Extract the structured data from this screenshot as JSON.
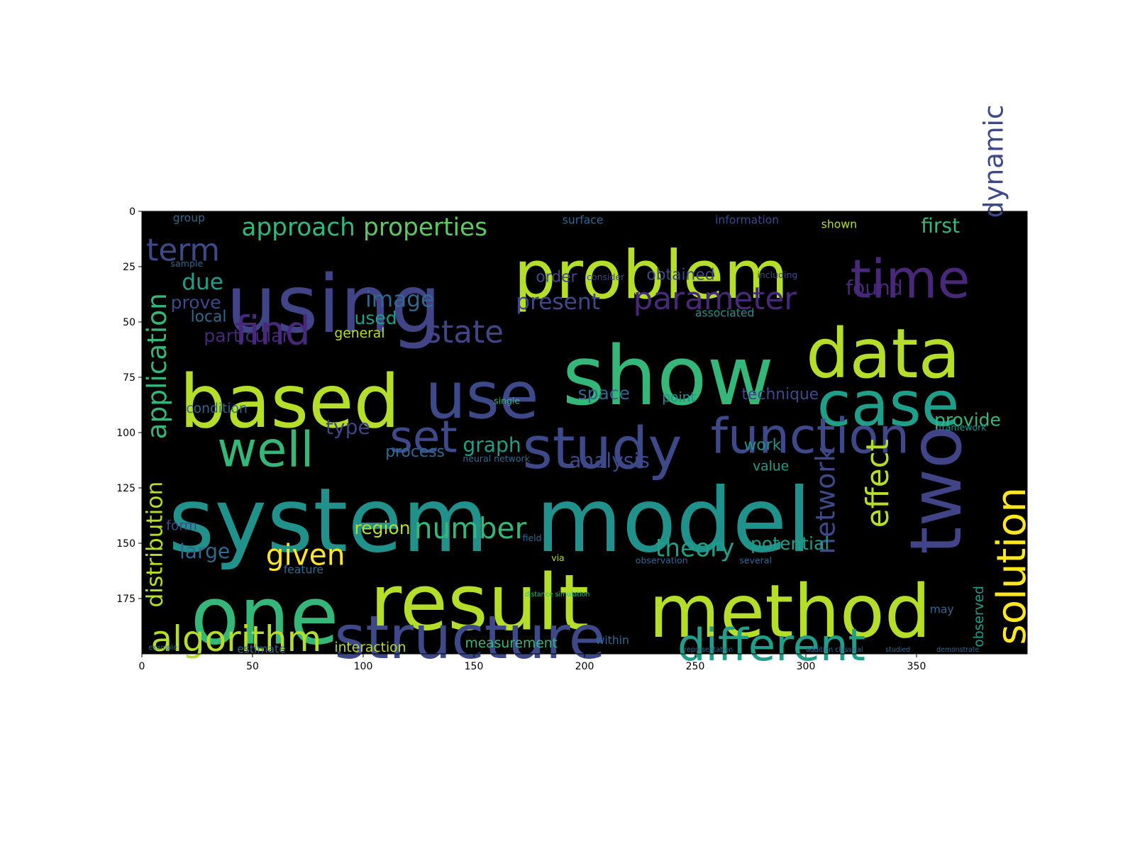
{
  "chart_data": {
    "type": "wordcloud",
    "title": "",
    "xlabel": "",
    "ylabel": "",
    "xlim": [
      0,
      400
    ],
    "ylim": [
      200,
      0
    ],
    "x_ticks": [
      0,
      50,
      100,
      150,
      200,
      250,
      300,
      350
    ],
    "y_ticks": [
      0,
      25,
      50,
      75,
      100,
      125,
      150,
      175
    ],
    "x_tick_labels": [
      "0",
      "50",
      "100",
      "150",
      "200",
      "250",
      "300",
      "350"
    ],
    "y_tick_labels": [
      "0",
      "25",
      "50",
      "75",
      "100",
      "125",
      "150",
      "175"
    ],
    "grid": false,
    "background": "#000000",
    "palette": {
      "yellow": "#fde725",
      "lime": "#b5de2b",
      "green": "#35b779",
      "teal": "#1f9e89",
      "blue": "#3e4989",
      "navy": "#31688e",
      "purple": "#482878",
      "dark": "#440154"
    },
    "words": [
      {
        "text": "system",
        "x": 12,
        "y": 124,
        "size": 40,
        "color": "#21918c"
      },
      {
        "text": "model",
        "x": 178,
        "y": 124,
        "size": 40,
        "color": "#21918c"
      },
      {
        "text": "using",
        "x": 38,
        "y": 28,
        "size": 36,
        "color": "#414487"
      },
      {
        "text": "problem",
        "x": 168,
        "y": 17,
        "size": 30,
        "color": "#b5de2b"
      },
      {
        "text": "show",
        "x": 190,
        "y": 60,
        "size": 37,
        "color": "#35b779"
      },
      {
        "text": "based",
        "x": 17,
        "y": 73,
        "size": 33,
        "color": "#b5de2b"
      },
      {
        "text": "data",
        "x": 300,
        "y": 52,
        "size": 31,
        "color": "#b5de2b"
      },
      {
        "text": "use",
        "x": 128,
        "y": 72,
        "size": 29,
        "color": "#3e4989"
      },
      {
        "text": "case",
        "x": 305,
        "y": 76,
        "size": 28,
        "color": "#1f9e89"
      },
      {
        "text": "time",
        "x": 320,
        "y": 21,
        "size": 24,
        "color": "#482878"
      },
      {
        "text": "study",
        "x": 172,
        "y": 97,
        "size": 26,
        "color": "#3e4989"
      },
      {
        "text": "function",
        "x": 257,
        "y": 93,
        "size": 22,
        "color": "#3e4989"
      },
      {
        "text": "result",
        "x": 103,
        "y": 163,
        "size": 35,
        "color": "#b5de2b"
      },
      {
        "text": "one",
        "x": 22,
        "y": 169,
        "size": 36,
        "color": "#35b779"
      },
      {
        "text": "method",
        "x": 229,
        "y": 168,
        "size": 33,
        "color": "#b5de2b"
      },
      {
        "text": "structure",
        "x": 87,
        "y": 182,
        "size": 27,
        "color": "#3e4989"
      },
      {
        "text": "different",
        "x": 242,
        "y": 188,
        "size": 20,
        "color": "#1f9e89"
      },
      {
        "text": "algorithm",
        "x": 4,
        "y": 187,
        "size": 16,
        "color": "#b5de2b"
      },
      {
        "text": "well",
        "x": 34,
        "y": 99,
        "size": 22,
        "color": "#35b779"
      },
      {
        "text": "set",
        "x": 112,
        "y": 94,
        "size": 20,
        "color": "#3e4989"
      },
      {
        "text": "find",
        "x": 42,
        "y": 47,
        "size": 18,
        "color": "#482878"
      },
      {
        "text": "term",
        "x": 2,
        "y": 12,
        "size": 14,
        "color": "#3e4989"
      },
      {
        "text": "approach",
        "x": 45,
        "y": 3,
        "size": 11,
        "color": "#35b779"
      },
      {
        "text": "properties",
        "x": 100,
        "y": 3,
        "size": 11,
        "color": "#5ec962"
      },
      {
        "text": "parameter",
        "x": 222,
        "y": 34,
        "size": 14,
        "color": "#482878"
      },
      {
        "text": "state",
        "x": 128,
        "y": 49,
        "size": 14,
        "color": "#414487"
      },
      {
        "text": "image",
        "x": 101,
        "y": 36,
        "size": 10,
        "color": "#31688e"
      },
      {
        "text": "present",
        "x": 169,
        "y": 37,
        "size": 10,
        "color": "#3e4989"
      },
      {
        "text": "due",
        "x": 18,
        "y": 28,
        "size": 10,
        "color": "#1f9e89"
      },
      {
        "text": "prove",
        "x": 13,
        "y": 38,
        "size": 8,
        "color": "#3e4989"
      },
      {
        "text": "local",
        "x": 22,
        "y": 45,
        "size": 7,
        "color": "#31688e"
      },
      {
        "text": "particular",
        "x": 28,
        "y": 53,
        "size": 8,
        "color": "#482878"
      },
      {
        "text": "general",
        "x": 87,
        "y": 53,
        "size": 6,
        "color": "#b5de2b"
      },
      {
        "text": "used",
        "x": 96,
        "y": 45,
        "size": 8,
        "color": "#1f9e89"
      },
      {
        "text": "first",
        "x": 352,
        "y": 3,
        "size": 9,
        "color": "#35b779"
      },
      {
        "text": "found",
        "x": 318,
        "y": 31,
        "size": 9,
        "color": "#482878"
      },
      {
        "text": "order",
        "x": 178,
        "y": 27,
        "size": 7,
        "color": "#3e4989"
      },
      {
        "text": "obtained",
        "x": 228,
        "y": 26,
        "size": 7,
        "color": "#3e4989"
      },
      {
        "text": "dynamic",
        "x": 380,
        "y": 3,
        "size": 12,
        "color": "#3e4989",
        "rotate": -90
      },
      {
        "text": "application",
        "x": 2,
        "y": 103,
        "size": 12,
        "color": "#35b779",
        "rotate": -90
      },
      {
        "text": "distribution",
        "x": 2,
        "y": 179,
        "size": 10,
        "color": "#b5de2b",
        "rotate": -90
      },
      {
        "text": "solution",
        "x": 386,
        "y": 196,
        "size": 18,
        "color": "#fde725",
        "rotate": -90
      },
      {
        "text": "two",
        "x": 346,
        "y": 155,
        "size": 32,
        "color": "#414487",
        "rotate": -90
      },
      {
        "text": "effect",
        "x": 327,
        "y": 143,
        "size": 14,
        "color": "#b5de2b",
        "rotate": -90
      },
      {
        "text": "network",
        "x": 304,
        "y": 155,
        "size": 12,
        "color": "#3e4989",
        "rotate": -90
      },
      {
        "text": "observed",
        "x": 376,
        "y": 197,
        "size": 6,
        "color": "#1f9e89",
        "rotate": -90
      },
      {
        "text": "number",
        "x": 123,
        "y": 138,
        "size": 13,
        "color": "#35b779"
      },
      {
        "text": "given",
        "x": 56,
        "y": 150,
        "size": 13,
        "color": "#fde725"
      },
      {
        "text": "theory",
        "x": 232,
        "y": 148,
        "size": 11,
        "color": "#1f9e89"
      },
      {
        "text": "potential",
        "x": 275,
        "y": 147,
        "size": 8,
        "color": "#1f9e89"
      },
      {
        "text": "large",
        "x": 17,
        "y": 150,
        "size": 9,
        "color": "#31688e"
      },
      {
        "text": "region",
        "x": 96,
        "y": 140,
        "size": 8,
        "color": "#b5de2b"
      },
      {
        "text": "form",
        "x": 11,
        "y": 140,
        "size": 6,
        "color": "#3e4989"
      },
      {
        "text": "type",
        "x": 83,
        "y": 94,
        "size": 9,
        "color": "#414487"
      },
      {
        "text": "graph",
        "x": 145,
        "y": 102,
        "size": 9,
        "color": "#1f9e89"
      },
      {
        "text": "process",
        "x": 110,
        "y": 106,
        "size": 7,
        "color": "#31688e"
      },
      {
        "text": "analysis",
        "x": 193,
        "y": 109,
        "size": 9,
        "color": "#3e4989"
      },
      {
        "text": "space",
        "x": 197,
        "y": 79,
        "size": 8,
        "color": "#31688e"
      },
      {
        "text": "point",
        "x": 235,
        "y": 82,
        "size": 6,
        "color": "#21918c"
      },
      {
        "text": "technique",
        "x": 271,
        "y": 80,
        "size": 7,
        "color": "#3e4989"
      },
      {
        "text": "provide",
        "x": 358,
        "y": 91,
        "size": 8,
        "color": "#35b779"
      },
      {
        "text": "work",
        "x": 272,
        "y": 103,
        "size": 7,
        "color": "#21918c"
      },
      {
        "text": "value",
        "x": 276,
        "y": 113,
        "size": 6,
        "color": "#1f9e89"
      },
      {
        "text": "condition",
        "x": 20,
        "y": 87,
        "size": 6,
        "color": "#31688e"
      },
      {
        "text": "interaction",
        "x": 87,
        "y": 195,
        "size": 6,
        "color": "#b5de2b"
      },
      {
        "text": "measurement",
        "x": 146,
        "y": 193,
        "size": 6,
        "color": "#35b779"
      },
      {
        "text": "within",
        "x": 205,
        "y": 192,
        "size": 5,
        "color": "#31688e"
      },
      {
        "text": "estimate",
        "x": 43,
        "y": 196,
        "size": 5,
        "color": "#31688e"
      },
      {
        "text": "feature",
        "x": 64,
        "y": 160,
        "size": 5,
        "color": "#31688e"
      },
      {
        "text": "group",
        "x": 14,
        "y": 1,
        "size": 5,
        "color": "#31688e"
      },
      {
        "text": "surface",
        "x": 190,
        "y": 2,
        "size": 5,
        "color": "#31688e"
      },
      {
        "text": "information",
        "x": 259,
        "y": 2,
        "size": 5,
        "color": "#3e4989"
      },
      {
        "text": "shown",
        "x": 307,
        "y": 4,
        "size": 5,
        "color": "#b5de2b"
      },
      {
        "text": "associated",
        "x": 250,
        "y": 44,
        "size": 5,
        "color": "#21918c"
      },
      {
        "text": "including",
        "x": 278,
        "y": 27,
        "size": 4,
        "color": "#3e4989"
      },
      {
        "text": "consider",
        "x": 201,
        "y": 28,
        "size": 4,
        "color": "#3e4989"
      },
      {
        "text": "sample",
        "x": 13,
        "y": 22,
        "size": 4,
        "color": "#31688e"
      },
      {
        "text": "framework",
        "x": 360,
        "y": 96,
        "size": 4,
        "color": "#21918c"
      },
      {
        "text": "neural network",
        "x": 145,
        "y": 110,
        "size": 4,
        "color": "#31688e"
      },
      {
        "text": "may",
        "x": 356,
        "y": 178,
        "size": 5,
        "color": "#31688e"
      },
      {
        "text": "several",
        "x": 270,
        "y": 156,
        "size": 4,
        "color": "#31688e"
      },
      {
        "text": "observation",
        "x": 223,
        "y": 156,
        "size": 4,
        "color": "#31688e"
      },
      {
        "text": "via",
        "x": 185,
        "y": 155,
        "size": 4,
        "color": "#b5de2b"
      },
      {
        "text": "field",
        "x": 172,
        "y": 146,
        "size": 4,
        "color": "#31688e"
      },
      {
        "text": "single",
        "x": 159,
        "y": 84,
        "size": 4,
        "color": "#35b779"
      },
      {
        "text": "distance simulation",
        "x": 173,
        "y": 172,
        "size": 3,
        "color": "#35b779"
      },
      {
        "text": "representation",
        "x": 245,
        "y": 197,
        "size": 3,
        "color": "#31688e"
      },
      {
        "text": "addition classical",
        "x": 300,
        "y": 197,
        "size": 3,
        "color": "#31688e"
      },
      {
        "text": "studied",
        "x": 336,
        "y": 197,
        "size": 3,
        "color": "#31688e"
      },
      {
        "text": "demonstrate",
        "x": 359,
        "y": 197,
        "size": 3,
        "color": "#31688e"
      },
      {
        "text": "example",
        "x": 3,
        "y": 196,
        "size": 3,
        "color": "#31688e"
      }
    ]
  }
}
